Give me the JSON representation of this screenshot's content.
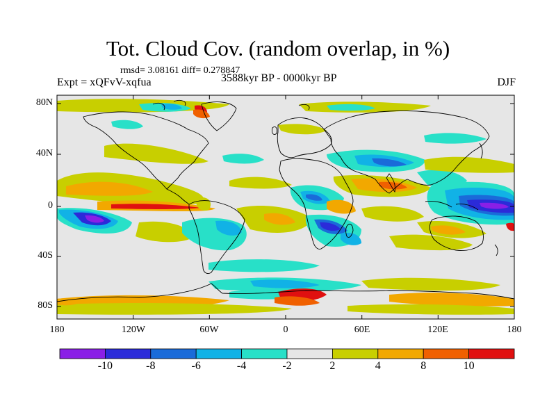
{
  "title": "Tot. Cloud Cov. (random overlap, in %)",
  "stats": "rmsd= 3.08161 diff= 0.278847",
  "experiment": "Expt = xQFvV-xqfua",
  "period": "3588kyr BP - 0000kyr BP",
  "season": "DJF",
  "lat_labels": [
    "80N",
    "40N",
    "0",
    "40S",
    "80S"
  ],
  "lon_labels": [
    "180",
    "120W",
    "60W",
    "0",
    "60E",
    "120E",
    "180"
  ],
  "colorbar": {
    "labels": [
      "-10",
      "-8",
      "-6",
      "-4",
      "-2",
      "2",
      "4",
      "8",
      "10"
    ],
    "colors": [
      "#8a1fe6",
      "#2b2bd9",
      "#1a6bd9",
      "#11b2e6",
      "#28e0c8",
      "#e6e6e6",
      "#c8cf00",
      "#f2a800",
      "#f06000",
      "#e01010"
    ]
  },
  "palette": {
    "neutral": "#e6e6e6",
    "p2": "#c8cf00",
    "p4": "#f2a800",
    "p8": "#f06000",
    "p10": "#e01010",
    "n2": "#28e0c8",
    "n4": "#11b2e6",
    "n6": "#1a6bd9",
    "n8": "#2b2bd9",
    "n10": "#8a1fe6"
  }
}
